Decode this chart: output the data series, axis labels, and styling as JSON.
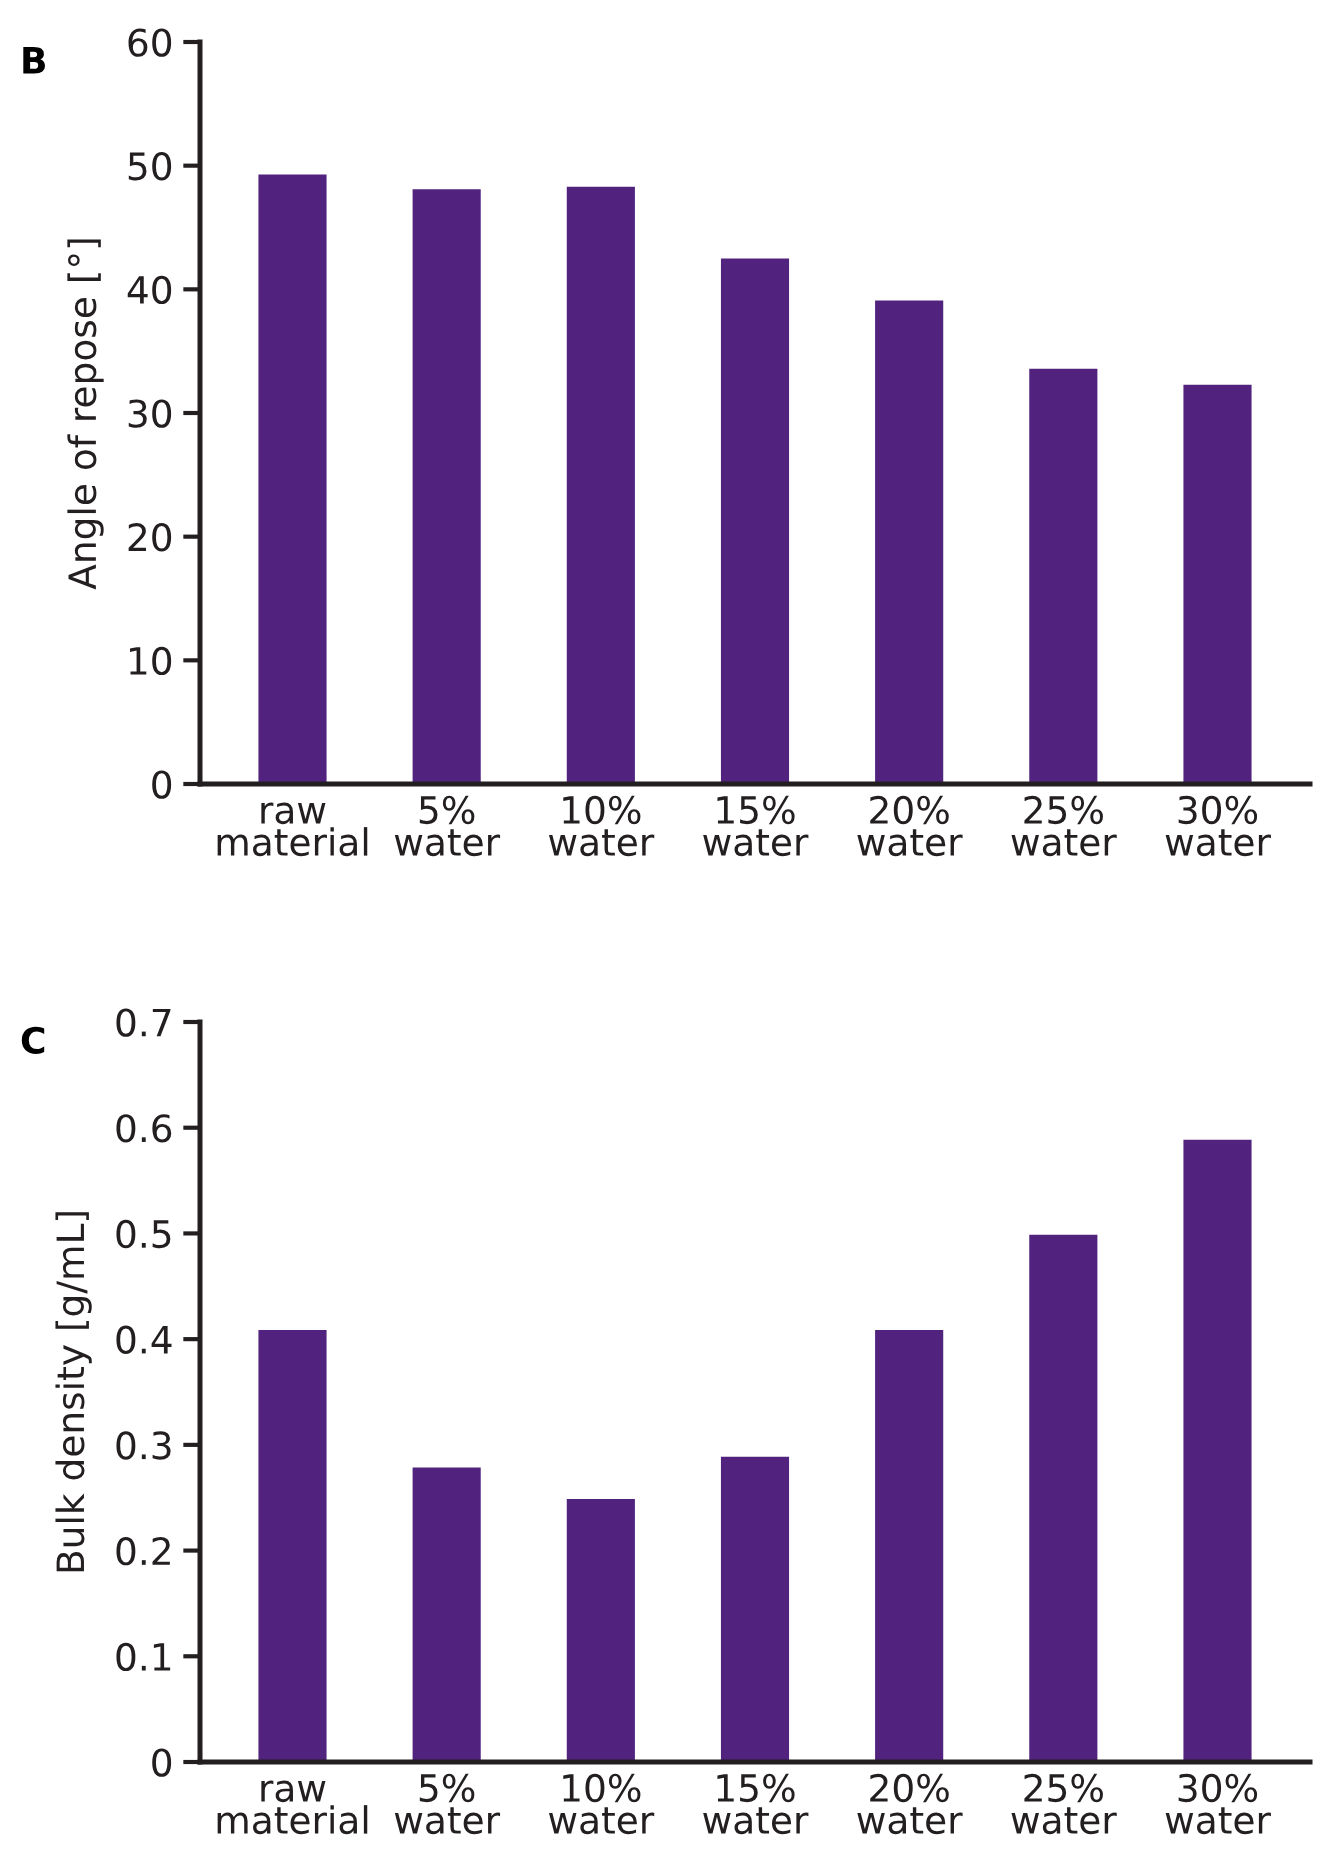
{
  "chart_data": [
    {
      "type": "bar",
      "ylabel": "Angle of repose [°]",
      "annotations": [
        "B"
      ],
      "categories": [
        "raw\nmaterial",
        "5%\nwater",
        "10%\nwater",
        "15%\nwater",
        "20%\nwater",
        "25%\nwater",
        "30%\nwater"
      ],
      "values": [
        49.4,
        48.2,
        48.4,
        42.6,
        39.2,
        33.7,
        32.4
      ],
      "color": "#51237f",
      "ylim": [
        0,
        60
      ],
      "yticks": [
        0,
        10,
        20,
        30,
        40,
        50,
        60
      ],
      "grid": false
    },
    {
      "type": "bar",
      "ylabel": "Bulk density [g/mL]",
      "annotations": [
        "C"
      ],
      "categories": [
        "raw\nmaterial",
        "5%\nwater",
        "10%\nwater",
        "15%\nwater",
        "20%\nwater",
        "25%\nwater",
        "30%\nwater"
      ],
      "values": [
        0.41,
        0.28,
        0.25,
        0.29,
        0.41,
        0.5,
        0.59
      ],
      "color": "#51237f",
      "ylim": [
        0,
        0.7
      ],
      "yticks": [
        0,
        0.1,
        0.2,
        0.3,
        0.4,
        0.5,
        0.6,
        0.7
      ],
      "grid": false
    }
  ]
}
